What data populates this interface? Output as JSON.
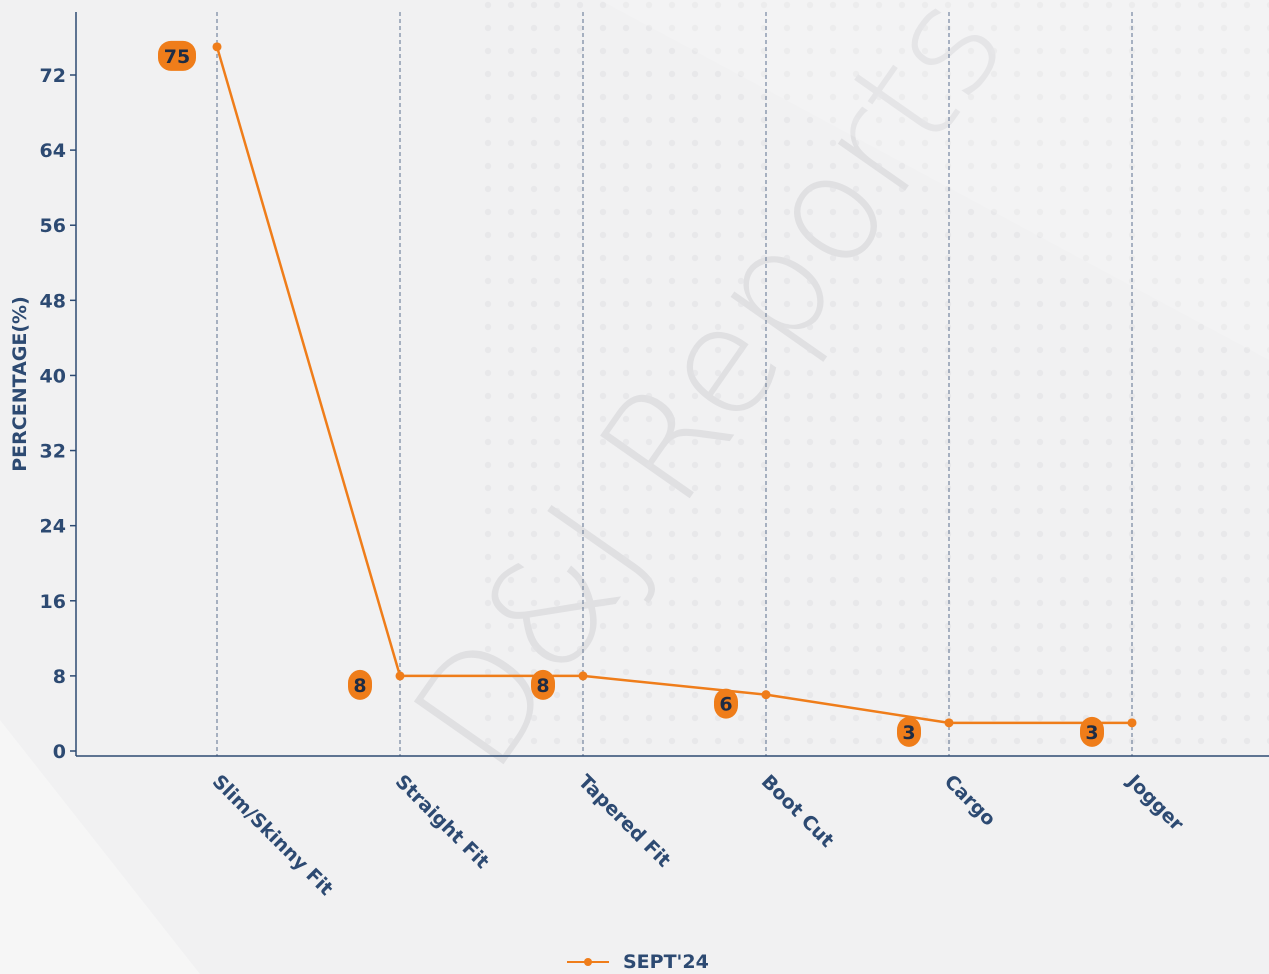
{
  "chart_data": {
    "type": "line",
    "title": "",
    "xlabel": "",
    "ylabel": "PERCENTAGE(%)",
    "categories": [
      "Slim/Skinny Fit",
      "Straight Fit",
      "Tapered Fit",
      "Boot Cut",
      "Cargo",
      "Jogger"
    ],
    "series": [
      {
        "name": "SEPT'24",
        "values": [
          75,
          8,
          8,
          6,
          3,
          3
        ],
        "color": "#ef7d1a"
      }
    ],
    "yticks": [
      0,
      8,
      16,
      24,
      32,
      40,
      48,
      56,
      64,
      72
    ],
    "ylim": [
      -0.5,
      79
    ],
    "grid": "vertical-dashed",
    "legend": "bottom-center",
    "watermark": "D&J Reports",
    "colors": {
      "axis": "#2d4a72",
      "grid": "#5b6f8f",
      "label_bg": "#ef7d1a",
      "label_text": "#1e2c44"
    }
  }
}
